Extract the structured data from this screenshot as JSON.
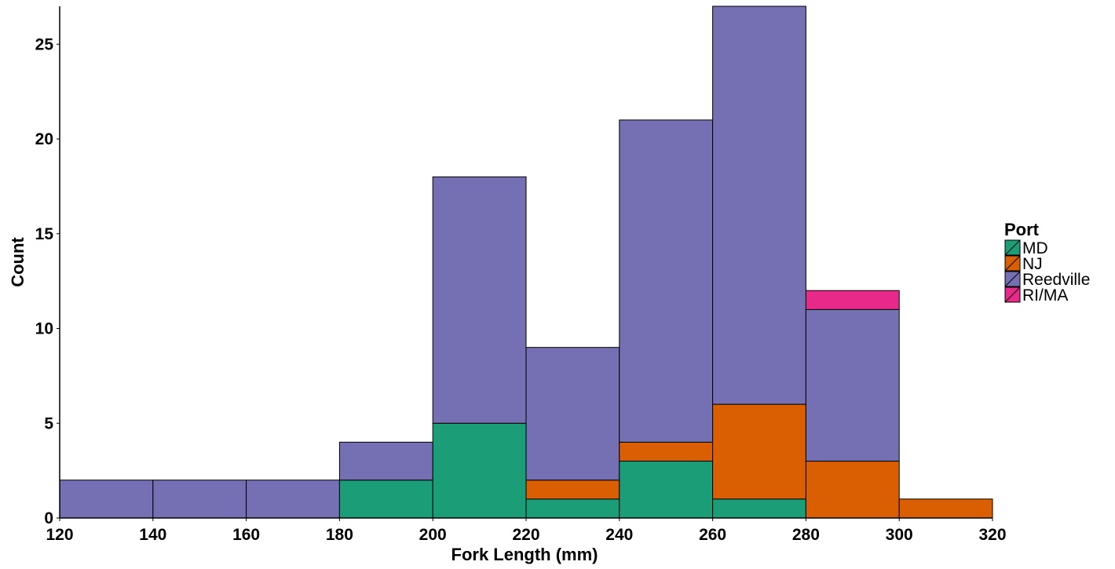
{
  "chart_data": {
    "type": "bar",
    "stacked": true,
    "title": "",
    "xlabel": "Fork Length (mm)",
    "ylabel": "Count",
    "bins": [
      [
        120,
        140
      ],
      [
        140,
        160
      ],
      [
        160,
        180
      ],
      [
        180,
        200
      ],
      [
        200,
        220
      ],
      [
        220,
        240
      ],
      [
        240,
        260
      ],
      [
        260,
        280
      ],
      [
        280,
        300
      ],
      [
        300,
        320
      ]
    ],
    "xlim": [
      120,
      320
    ],
    "ylim": [
      0,
      27
    ],
    "x_ticks": [
      120,
      140,
      160,
      180,
      200,
      220,
      240,
      260,
      280,
      300,
      320
    ],
    "y_ticks": [
      0,
      5,
      10,
      15,
      20,
      25
    ],
    "grid": false,
    "legend": {
      "title": "Port",
      "placement": "right"
    },
    "series": [
      {
        "name": "MD",
        "color": "#1b9e77",
        "values": [
          0,
          0,
          0,
          2,
          5,
          1,
          3,
          1,
          0,
          0
        ]
      },
      {
        "name": "NJ",
        "color": "#d95f02",
        "values": [
          0,
          0,
          0,
          0,
          0,
          1,
          1,
          5,
          3,
          1
        ]
      },
      {
        "name": "Reedville",
        "color": "#7570b3",
        "values": [
          2,
          2,
          2,
          2,
          13,
          7,
          17,
          21,
          8,
          0
        ]
      },
      {
        "name": "RI/MA",
        "color": "#e7298a",
        "values": [
          0,
          0,
          0,
          0,
          0,
          0,
          0,
          0,
          1,
          0
        ]
      }
    ]
  }
}
